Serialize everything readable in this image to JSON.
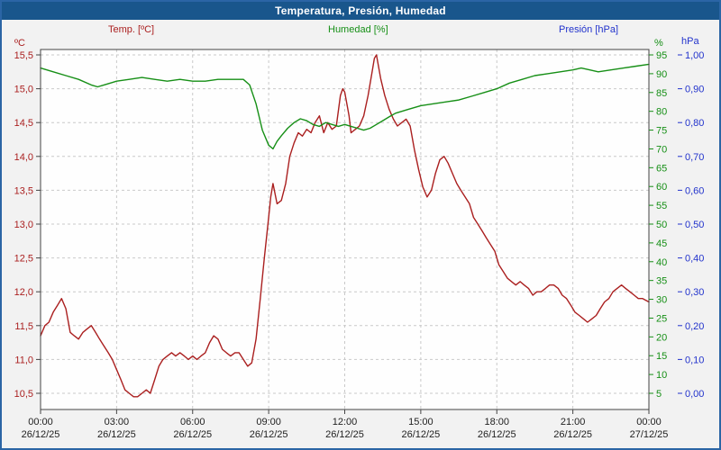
{
  "chart_data": {
    "type": "line",
    "title": "Temperatura, Presión, Humedad",
    "colors": {
      "title_bar_bg": "#19568C",
      "title_text": "#FFFFFF",
      "frame_border": "#2B65A5",
      "page_bg": "#F2F2F2",
      "plot_bg": "#FEFEFE",
      "grid": "#C9C9C9",
      "axis_border": "#444444",
      "x_label": "#222222"
    },
    "x_axis": {
      "range_hours": [
        0,
        24
      ],
      "ticks_hours": [
        0,
        3,
        6,
        9,
        12,
        15,
        18,
        21,
        24
      ],
      "tick_labels": [
        "00:00",
        "03:00",
        "06:00",
        "09:00",
        "12:00",
        "15:00",
        "18:00",
        "21:00",
        "00:00"
      ],
      "date_labels": [
        "26/12/25",
        "26/12/25",
        "26/12/25",
        "26/12/25",
        "26/12/25",
        "26/12/25",
        "26/12/25",
        "26/12/25",
        "27/12/25"
      ]
    },
    "axes": {
      "temperature": {
        "label": "Temp. [ºC]",
        "unit": "ºC",
        "color": "#AA1F1F",
        "min": 10.5,
        "max": 15.5,
        "tick_values": [
          15.5,
          15.0,
          14.5,
          14.0,
          13.5,
          13.0,
          12.5,
          12.0,
          11.5,
          11.0,
          10.5
        ],
        "tick_labels": [
          "15,5",
          "15,0",
          "14,5",
          "14,0",
          "13,5",
          "13,0",
          "12,5",
          "12,0",
          "11,5",
          "11,0",
          "10,5"
        ]
      },
      "humidity": {
        "label": "Humedad [%]",
        "unit": "%",
        "color": "#168F16",
        "min": 5,
        "max": 95,
        "tick_values": [
          95,
          90,
          85,
          80,
          75,
          70,
          65,
          60,
          55,
          50,
          45,
          40,
          35,
          30,
          25,
          20,
          15,
          10,
          5
        ],
        "tick_labels": [
          "95",
          "90",
          "85",
          "80",
          "75",
          "70",
          "65",
          "60",
          "55",
          "50",
          "45",
          "40",
          "35",
          "30",
          "25",
          "20",
          "15",
          "10",
          "5"
        ]
      },
      "pressure": {
        "label": "Presión [hPa]",
        "unit": "hPa",
        "color": "#2233CC",
        "min": 0.0,
        "max": 1.0,
        "tick_values": [
          1.0,
          0.9,
          0.8,
          0.7,
          0.6,
          0.5,
          0.4,
          0.3,
          0.2,
          0.1,
          0.0
        ],
        "tick_labels": [
          "1,00",
          "0,90",
          "0,80",
          "0,70",
          "0,60",
          "0,50",
          "0,40",
          "0,30",
          "0,20",
          "0,10",
          "0,00"
        ]
      }
    },
    "series": [
      {
        "name": "Temperatura",
        "axis": "temperature",
        "color": "#AA1F1F",
        "points": [
          [
            0,
            11.35
          ],
          [
            0.17,
            11.5
          ],
          [
            0.33,
            11.55
          ],
          [
            0.5,
            11.7
          ],
          [
            0.67,
            11.8
          ],
          [
            0.83,
            11.9
          ],
          [
            1.0,
            11.75
          ],
          [
            1.17,
            11.4
          ],
          [
            1.33,
            11.35
          ],
          [
            1.5,
            11.3
          ],
          [
            1.67,
            11.4
          ],
          [
            1.83,
            11.45
          ],
          [
            2.0,
            11.5
          ],
          [
            2.17,
            11.4
          ],
          [
            2.33,
            11.3
          ],
          [
            2.5,
            11.2
          ],
          [
            2.67,
            11.1
          ],
          [
            2.83,
            11.0
          ],
          [
            3.0,
            10.85
          ],
          [
            3.17,
            10.7
          ],
          [
            3.33,
            10.55
          ],
          [
            3.5,
            10.5
          ],
          [
            3.67,
            10.45
          ],
          [
            3.83,
            10.45
          ],
          [
            4.0,
            10.5
          ],
          [
            4.17,
            10.55
          ],
          [
            4.33,
            10.5
          ],
          [
            4.5,
            10.7
          ],
          [
            4.67,
            10.9
          ],
          [
            4.83,
            11.0
          ],
          [
            5.0,
            11.05
          ],
          [
            5.17,
            11.1
          ],
          [
            5.33,
            11.05
          ],
          [
            5.5,
            11.1
          ],
          [
            5.67,
            11.05
          ],
          [
            5.83,
            11.0
          ],
          [
            6.0,
            11.05
          ],
          [
            6.17,
            11.0
          ],
          [
            6.33,
            11.05
          ],
          [
            6.5,
            11.1
          ],
          [
            6.67,
            11.25
          ],
          [
            6.83,
            11.35
          ],
          [
            7.0,
            11.3
          ],
          [
            7.17,
            11.15
          ],
          [
            7.33,
            11.1
          ],
          [
            7.5,
            11.05
          ],
          [
            7.67,
            11.1
          ],
          [
            7.83,
            11.1
          ],
          [
            8.0,
            11.0
          ],
          [
            8.17,
            10.9
          ],
          [
            8.33,
            10.95
          ],
          [
            8.5,
            11.3
          ],
          [
            8.67,
            11.9
          ],
          [
            8.83,
            12.5
          ],
          [
            9.0,
            13.1
          ],
          [
            9.08,
            13.4
          ],
          [
            9.17,
            13.6
          ],
          [
            9.33,
            13.3
          ],
          [
            9.5,
            13.35
          ],
          [
            9.67,
            13.6
          ],
          [
            9.83,
            14.0
          ],
          [
            10.0,
            14.2
          ],
          [
            10.17,
            14.35
          ],
          [
            10.33,
            14.3
          ],
          [
            10.5,
            14.4
          ],
          [
            10.67,
            14.35
          ],
          [
            10.83,
            14.5
          ],
          [
            11.0,
            14.6
          ],
          [
            11.17,
            14.35
          ],
          [
            11.33,
            14.5
          ],
          [
            11.5,
            14.4
          ],
          [
            11.67,
            14.45
          ],
          [
            11.83,
            14.9
          ],
          [
            11.92,
            15.0
          ],
          [
            12.0,
            14.95
          ],
          [
            12.17,
            14.6
          ],
          [
            12.25,
            14.35
          ],
          [
            12.42,
            14.4
          ],
          [
            12.58,
            14.45
          ],
          [
            12.75,
            14.6
          ],
          [
            12.92,
            14.9
          ],
          [
            13.08,
            15.25
          ],
          [
            13.17,
            15.45
          ],
          [
            13.25,
            15.5
          ],
          [
            13.42,
            15.15
          ],
          [
            13.58,
            14.9
          ],
          [
            13.75,
            14.7
          ],
          [
            13.92,
            14.55
          ],
          [
            14.08,
            14.45
          ],
          [
            14.25,
            14.5
          ],
          [
            14.42,
            14.55
          ],
          [
            14.58,
            14.45
          ],
          [
            14.75,
            14.1
          ],
          [
            14.92,
            13.8
          ],
          [
            15.08,
            13.55
          ],
          [
            15.25,
            13.4
          ],
          [
            15.42,
            13.5
          ],
          [
            15.58,
            13.75
          ],
          [
            15.75,
            13.95
          ],
          [
            15.92,
            14.0
          ],
          [
            16.08,
            13.9
          ],
          [
            16.25,
            13.75
          ],
          [
            16.42,
            13.6
          ],
          [
            16.58,
            13.5
          ],
          [
            16.75,
            13.4
          ],
          [
            16.92,
            13.3
          ],
          [
            17.08,
            13.1
          ],
          [
            17.25,
            13.0
          ],
          [
            17.42,
            12.9
          ],
          [
            17.58,
            12.8
          ],
          [
            17.75,
            12.7
          ],
          [
            17.92,
            12.6
          ],
          [
            18.08,
            12.4
          ],
          [
            18.25,
            12.3
          ],
          [
            18.42,
            12.2
          ],
          [
            18.58,
            12.15
          ],
          [
            18.75,
            12.1
          ],
          [
            18.92,
            12.15
          ],
          [
            19.08,
            12.1
          ],
          [
            19.25,
            12.05
          ],
          [
            19.42,
            11.95
          ],
          [
            19.58,
            12.0
          ],
          [
            19.75,
            12.0
          ],
          [
            19.92,
            12.05
          ],
          [
            20.08,
            12.1
          ],
          [
            20.25,
            12.1
          ],
          [
            20.42,
            12.05
          ],
          [
            20.58,
            11.95
          ],
          [
            20.75,
            11.9
          ],
          [
            20.92,
            11.8
          ],
          [
            21.08,
            11.7
          ],
          [
            21.25,
            11.65
          ],
          [
            21.42,
            11.6
          ],
          [
            21.58,
            11.55
          ],
          [
            21.75,
            11.6
          ],
          [
            21.92,
            11.65
          ],
          [
            22.08,
            11.75
          ],
          [
            22.25,
            11.85
          ],
          [
            22.42,
            11.9
          ],
          [
            22.58,
            12.0
          ],
          [
            22.75,
            12.05
          ],
          [
            22.92,
            12.1
          ],
          [
            23.08,
            12.05
          ],
          [
            23.25,
            12.0
          ],
          [
            23.42,
            11.95
          ],
          [
            23.58,
            11.9
          ],
          [
            23.75,
            11.9
          ],
          [
            24,
            11.85
          ]
        ]
      },
      {
        "name": "Humedad",
        "axis": "humidity",
        "color": "#168F16",
        "points": [
          [
            0,
            91.5
          ],
          [
            0.5,
            90.5
          ],
          [
            1,
            89.5
          ],
          [
            1.5,
            88.5
          ],
          [
            2,
            87
          ],
          [
            2.25,
            86.5
          ],
          [
            2.5,
            87
          ],
          [
            3,
            88
          ],
          [
            3.5,
            88.5
          ],
          [
            4,
            89
          ],
          [
            4.5,
            88.5
          ],
          [
            5,
            88
          ],
          [
            5.5,
            88.5
          ],
          [
            6,
            88
          ],
          [
            6.5,
            88
          ],
          [
            7,
            88.5
          ],
          [
            7.5,
            88.5
          ],
          [
            8,
            88.5
          ],
          [
            8.25,
            87
          ],
          [
            8.5,
            82
          ],
          [
            8.75,
            75
          ],
          [
            9,
            71
          ],
          [
            9.17,
            70
          ],
          [
            9.33,
            72
          ],
          [
            9.5,
            73.5
          ],
          [
            9.75,
            75.5
          ],
          [
            10,
            77
          ],
          [
            10.25,
            78
          ],
          [
            10.5,
            77.5
          ],
          [
            10.75,
            76.5
          ],
          [
            11,
            76
          ],
          [
            11.25,
            77
          ],
          [
            11.5,
            76.5
          ],
          [
            11.75,
            76
          ],
          [
            12,
            76.5
          ],
          [
            12.25,
            76
          ],
          [
            12.5,
            75.5
          ],
          [
            12.75,
            75
          ],
          [
            13,
            75.5
          ],
          [
            13.25,
            76.5
          ],
          [
            13.5,
            77.5
          ],
          [
            13.75,
            78.5
          ],
          [
            14,
            79.5
          ],
          [
            14.5,
            80.5
          ],
          [
            15,
            81.5
          ],
          [
            15.5,
            82
          ],
          [
            16,
            82.5
          ],
          [
            16.5,
            83
          ],
          [
            17,
            84
          ],
          [
            17.5,
            85
          ],
          [
            18,
            86
          ],
          [
            18.5,
            87.5
          ],
          [
            19,
            88.5
          ],
          [
            19.5,
            89.5
          ],
          [
            20,
            90
          ],
          [
            20.5,
            90.5
          ],
          [
            21,
            91
          ],
          [
            21.33,
            91.5
          ],
          [
            21.67,
            91
          ],
          [
            22,
            90.5
          ],
          [
            22.5,
            91
          ],
          [
            23,
            91.5
          ],
          [
            23.5,
            92
          ],
          [
            24,
            92.5
          ]
        ]
      },
      {
        "name": "Presión",
        "axis": "pressure",
        "color": "#2233CC",
        "points": []
      }
    ]
  }
}
